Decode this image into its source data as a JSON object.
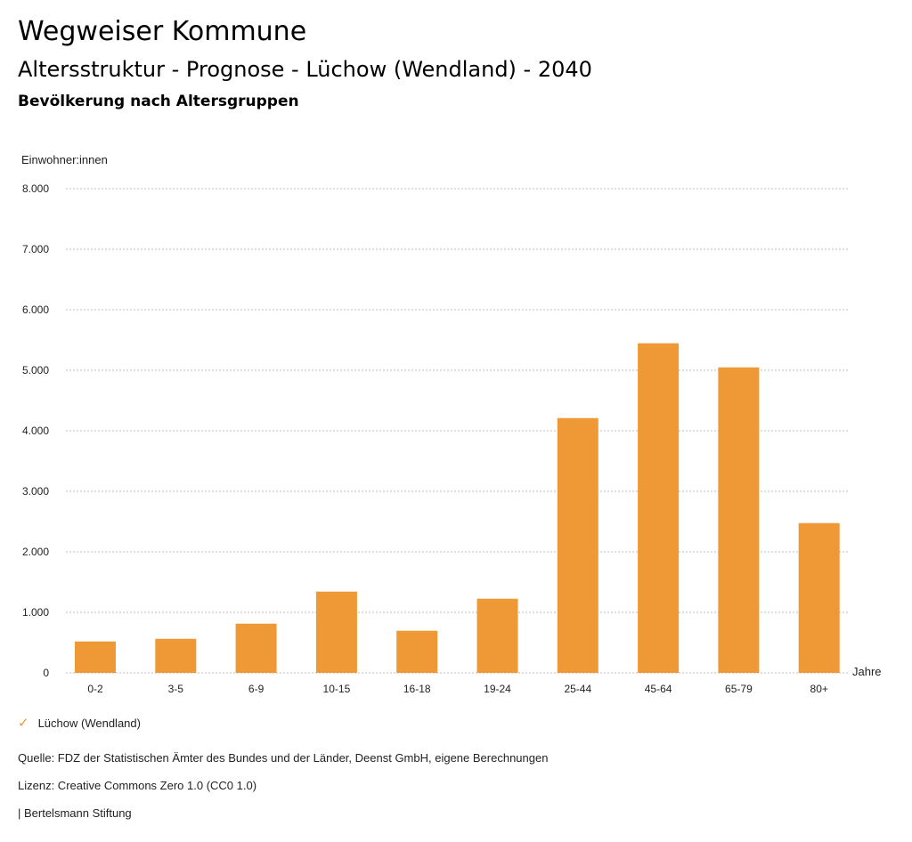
{
  "header": {
    "title": "Wegweiser Kommune",
    "subtitle": "Altersstruktur - Prognose - Lüchow (Wendland) - 2040",
    "section": "Bevölkerung nach Altersgruppen"
  },
  "chart_data": {
    "type": "bar",
    "ylabel": "Einwohner:innen",
    "xlabel": "Jahre",
    "ylim": [
      0,
      8000
    ],
    "yticks": [
      0,
      1000,
      2000,
      3000,
      4000,
      5000,
      6000,
      7000,
      8000
    ],
    "ytick_labels": [
      "0",
      "1.000",
      "2.000",
      "3.000",
      "4.000",
      "5.000",
      "6.000",
      "7.000",
      "8.000"
    ],
    "categories": [
      "0-2",
      "3-5",
      "6-9",
      "10-15",
      "16-18",
      "19-24",
      "25-44",
      "45-64",
      "65-79",
      "80+"
    ],
    "series": [
      {
        "name": "Lüchow (Wendland)",
        "color": "#ee9935",
        "values": [
          519,
          563,
          813,
          1343,
          696,
          1225,
          4210,
          5446,
          5048,
          2475
        ]
      }
    ],
    "grid": true,
    "legend": "bottom-left"
  },
  "footer": {
    "source": "Quelle: FDZ der Statistischen Ämter des Bundes und der Länder, Deenst GmbH, eigene Berechnungen",
    "license": "Lizenz: Creative Commons Zero 1.0 (CC0 1.0)",
    "brand": "| Bertelsmann Stiftung"
  }
}
